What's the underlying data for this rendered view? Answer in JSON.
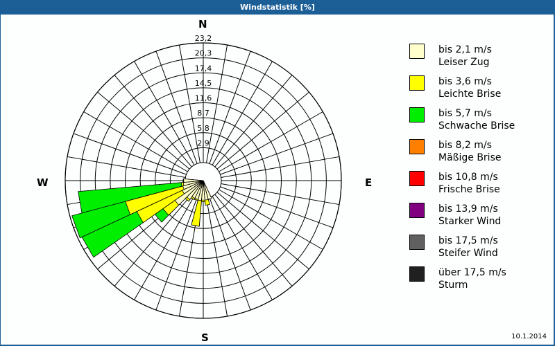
{
  "window": {
    "title": "Windstatistik [%]"
  },
  "compass": {
    "n": "N",
    "e": "E",
    "s": "S",
    "w": "W"
  },
  "legend": [
    {
      "range": "bis 2,1 m/s",
      "name": "Leiser Zug",
      "color": "#ffffcc"
    },
    {
      "range": "bis 3,6 m/s",
      "name": "Leichte Brise",
      "color": "#ffff00"
    },
    {
      "range": "bis 5,7 m/s",
      "name": "Schwache Brise",
      "color": "#00ee00"
    },
    {
      "range": "bis 8,2 m/s",
      "name": "Mäßige Brise",
      "color": "#ff8000"
    },
    {
      "range": "bis 10,8 m/s",
      "name": "Frische Brise",
      "color": "#ff0000"
    },
    {
      "range": "bis 13,9 m/s",
      "name": "Starker Wind",
      "color": "#800080"
    },
    {
      "range": "bis 17,5 m/s",
      "name": "Steifer Wind",
      "color": "#606060"
    },
    {
      "range": "über 17,5 m/s",
      "name": "Sturm",
      "color": "#202020"
    }
  ],
  "footer": {
    "date": "10.1.2014"
  },
  "chart_data": {
    "type": "polar-bar (wind rose)",
    "title": "Windstatistik [%]",
    "sectors": 36,
    "sector_width_deg": 10,
    "radial_ticks": [
      "2,9",
      "5,8",
      "8,7",
      "11,6",
      "14,5",
      "17,4",
      "20,3",
      "23,2"
    ],
    "radial_max": 23.2,
    "legend_position": "right",
    "series_order": [
      "Leiser Zug",
      "Leichte Brise",
      "Schwache Brise",
      "Mäßige Brise",
      "Frische Brise",
      "Starker Wind",
      "Steifer Wind",
      "Sturm"
    ],
    "bars": [
      {
        "direction_deg": 260,
        "stacked_cumulative_pct": [
          0.4,
          0.8,
          20.8
        ]
      },
      {
        "direction_deg": 250,
        "stacked_cumulative_pct": [
          0.6,
          12.1,
          22.8
        ]
      },
      {
        "direction_deg": 240,
        "stacked_cumulative_pct": [
          1.0,
          10.7,
          22.4
        ]
      },
      {
        "direction_deg": 230,
        "stacked_cumulative_pct": [
          3.2,
          6.0,
          7.9
        ]
      },
      {
        "direction_deg": 220,
        "stacked_cumulative_pct": [
          1.0,
          1.4,
          1.4
        ]
      },
      {
        "direction_deg": 210,
        "stacked_cumulative_pct": [
          0.3,
          0.6,
          0.6
        ]
      },
      {
        "direction_deg": 200,
        "stacked_cumulative_pct": [
          0.3,
          0.5,
          0.5
        ]
      },
      {
        "direction_deg": 190,
        "stacked_cumulative_pct": [
          0.4,
          5.4,
          5.4
        ]
      },
      {
        "direction_deg": 180,
        "stacked_cumulative_pct": [
          0.3,
          0.6,
          0.6
        ]
      },
      {
        "direction_deg": 170,
        "stacked_cumulative_pct": [
          0.3,
          1.3,
          1.3
        ]
      },
      {
        "direction_deg": 160,
        "stacked_cumulative_pct": [
          0.3,
          0.3,
          0.3
        ]
      },
      {
        "direction_deg": 270,
        "stacked_cumulative_pct": [
          0.3,
          0.4,
          0.4
        ]
      }
    ]
  }
}
